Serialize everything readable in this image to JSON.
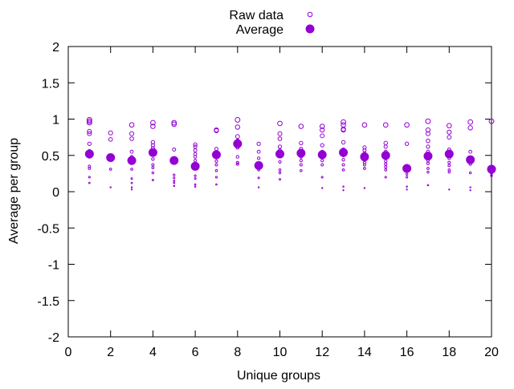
{
  "chart_data": {
    "type": "scatter",
    "xlabel": "Unique groups",
    "ylabel": "Average per group",
    "xlim": [
      0,
      20
    ],
    "ylim": [
      -2,
      2
    ],
    "xticks": [
      0,
      2,
      4,
      6,
      8,
      10,
      12,
      14,
      16,
      18,
      20
    ],
    "yticks": [
      -2,
      -1.5,
      -1,
      -0.5,
      0,
      0.5,
      1,
      1.5,
      2
    ],
    "grid": false,
    "legend_position": "top-center",
    "color": "#9400d3",
    "series": [
      {
        "name": "Raw data",
        "marker": "open-circle",
        "points": [
          [
            1,
            0.99
          ],
          [
            1,
            0.97
          ],
          [
            1,
            0.95
          ],
          [
            1,
            0.83
          ],
          [
            1,
            0.8
          ],
          [
            1,
            0.66
          ],
          [
            1,
            0.56
          ],
          [
            1,
            0.52
          ],
          [
            1,
            0.48
          ],
          [
            1,
            0.35
          ],
          [
            1,
            0.32
          ],
          [
            1,
            0.2
          ],
          [
            1,
            0.12
          ],
          [
            2,
            0.81
          ],
          [
            2,
            0.72
          ],
          [
            2,
            0.5
          ],
          [
            2,
            0.46
          ],
          [
            2,
            0.31
          ],
          [
            2,
            0.06
          ],
          [
            3,
            0.92
          ],
          [
            3,
            0.8
          ],
          [
            3,
            0.73
          ],
          [
            3,
            0.55
          ],
          [
            3,
            0.48
          ],
          [
            3,
            0.39
          ],
          [
            3,
            0.31
          ],
          [
            3,
            0.18
          ],
          [
            3,
            0.12
          ],
          [
            3,
            0.06
          ],
          [
            3,
            0.03
          ],
          [
            4,
            0.95
          ],
          [
            4,
            0.9
          ],
          [
            4,
            0.68
          ],
          [
            4,
            0.64
          ],
          [
            4,
            0.6
          ],
          [
            4,
            0.55
          ],
          [
            4,
            0.52
          ],
          [
            4,
            0.45
          ],
          [
            4,
            0.37
          ],
          [
            4,
            0.33
          ],
          [
            4,
            0.26
          ],
          [
            4,
            0.16
          ],
          [
            5,
            0.95
          ],
          [
            5,
            0.93
          ],
          [
            5,
            0.58
          ],
          [
            5,
            0.42
          ],
          [
            5,
            0.23
          ],
          [
            5,
            0.19
          ],
          [
            5,
            0.15
          ],
          [
            5,
            0.12
          ],
          [
            5,
            0.08
          ],
          [
            6,
            0.65
          ],
          [
            6,
            0.62
          ],
          [
            6,
            0.57
          ],
          [
            6,
            0.52
          ],
          [
            6,
            0.48
          ],
          [
            6,
            0.43
          ],
          [
            6,
            0.37
          ],
          [
            6,
            0.33
          ],
          [
            6,
            0.22
          ],
          [
            6,
            0.18
          ],
          [
            6,
            0.1
          ],
          [
            6,
            0.07
          ],
          [
            7,
            0.85
          ],
          [
            7,
            0.84
          ],
          [
            7,
            0.59
          ],
          [
            7,
            0.54
          ],
          [
            7,
            0.47
          ],
          [
            7,
            0.42
          ],
          [
            7,
            0.37
          ],
          [
            7,
            0.29
          ],
          [
            7,
            0.2
          ],
          [
            7,
            0.1
          ],
          [
            8,
            0.99
          ],
          [
            8,
            0.89
          ],
          [
            8,
            0.76
          ],
          [
            8,
            0.7
          ],
          [
            8,
            0.61
          ],
          [
            8,
            0.48
          ],
          [
            8,
            0.4
          ],
          [
            8,
            0.38
          ],
          [
            9,
            0.66
          ],
          [
            9,
            0.55
          ],
          [
            9,
            0.46
          ],
          [
            9,
            0.38
          ],
          [
            9,
            0.3
          ],
          [
            9,
            0.19
          ],
          [
            9,
            0.06
          ],
          [
            10,
            0.94
          ],
          [
            10,
            0.8
          ],
          [
            10,
            0.73
          ],
          [
            10,
            0.62
          ],
          [
            10,
            0.57
          ],
          [
            10,
            0.55
          ],
          [
            10,
            0.49
          ],
          [
            10,
            0.41
          ],
          [
            10,
            0.3
          ],
          [
            10,
            0.26
          ],
          [
            10,
            0.17
          ],
          [
            11,
            0.9
          ],
          [
            11,
            0.67
          ],
          [
            11,
            0.59
          ],
          [
            11,
            0.56
          ],
          [
            11,
            0.53
          ],
          [
            11,
            0.48
          ],
          [
            11,
            0.43
          ],
          [
            11,
            0.37
          ],
          [
            11,
            0.29
          ],
          [
            12,
            0.9
          ],
          [
            12,
            0.85
          ],
          [
            12,
            0.77
          ],
          [
            12,
            0.64
          ],
          [
            12,
            0.55
          ],
          [
            12,
            0.49
          ],
          [
            12,
            0.43
          ],
          [
            12,
            0.37
          ],
          [
            12,
            0.2
          ],
          [
            12,
            0.05
          ],
          [
            13,
            0.96
          ],
          [
            13,
            0.92
          ],
          [
            13,
            0.86
          ],
          [
            13,
            0.85
          ],
          [
            13,
            0.68
          ],
          [
            13,
            0.58
          ],
          [
            13,
            0.5
          ],
          [
            13,
            0.44
          ],
          [
            13,
            0.37
          ],
          [
            13,
            0.3
          ],
          [
            13,
            0.07
          ],
          [
            13,
            0.02
          ],
          [
            14,
            0.92
          ],
          [
            14,
            0.61
          ],
          [
            14,
            0.57
          ],
          [
            14,
            0.53
          ],
          [
            14,
            0.45
          ],
          [
            14,
            0.4
          ],
          [
            14,
            0.37
          ],
          [
            14,
            0.32
          ],
          [
            14,
            0.05
          ],
          [
            15,
            0.92
          ],
          [
            15,
            0.67
          ],
          [
            15,
            0.62
          ],
          [
            15,
            0.55
          ],
          [
            15,
            0.48
          ],
          [
            15,
            0.42
          ],
          [
            15,
            0.38
          ],
          [
            15,
            0.34
          ],
          [
            15,
            0.3
          ],
          [
            15,
            0.2
          ],
          [
            16,
            0.92
          ],
          [
            16,
            0.66
          ],
          [
            16,
            0.36
          ],
          [
            16,
            0.31
          ],
          [
            16,
            0.24
          ],
          [
            16,
            0.2
          ],
          [
            16,
            0.07
          ],
          [
            16,
            0.03
          ],
          [
            17,
            0.97
          ],
          [
            17,
            0.85
          ],
          [
            17,
            0.8
          ],
          [
            17,
            0.7
          ],
          [
            17,
            0.62
          ],
          [
            17,
            0.55
          ],
          [
            17,
            0.48
          ],
          [
            17,
            0.43
          ],
          [
            17,
            0.39
          ],
          [
            17,
            0.32
          ],
          [
            17,
            0.27
          ],
          [
            17,
            0.09
          ],
          [
            18,
            0.91
          ],
          [
            18,
            0.82
          ],
          [
            18,
            0.75
          ],
          [
            18,
            0.58
          ],
          [
            18,
            0.53
          ],
          [
            18,
            0.46
          ],
          [
            18,
            0.4
          ],
          [
            18,
            0.36
          ],
          [
            18,
            0.3
          ],
          [
            18,
            0.27
          ],
          [
            18,
            0.03
          ],
          [
            19,
            0.96
          ],
          [
            19,
            0.88
          ],
          [
            19,
            0.55
          ],
          [
            19,
            0.45
          ],
          [
            19,
            0.38
          ],
          [
            19,
            0.26
          ],
          [
            19,
            0.06
          ],
          [
            19,
            0.02
          ],
          [
            20,
            0.97
          ],
          [
            20,
            0.3
          ],
          [
            20,
            0.25
          ],
          [
            20,
            0.22
          ]
        ]
      },
      {
        "name": "Average",
        "marker": "filled-circle",
        "points": [
          [
            1,
            0.52
          ],
          [
            2,
            0.47
          ],
          [
            3,
            0.43
          ],
          [
            4,
            0.54
          ],
          [
            5,
            0.43
          ],
          [
            6,
            0.35
          ],
          [
            7,
            0.51
          ],
          [
            8,
            0.66
          ],
          [
            9,
            0.36
          ],
          [
            10,
            0.52
          ],
          [
            11,
            0.53
          ],
          [
            12,
            0.51
          ],
          [
            13,
            0.54
          ],
          [
            14,
            0.48
          ],
          [
            15,
            0.5
          ],
          [
            16,
            0.32
          ],
          [
            17,
            0.49
          ],
          [
            18,
            0.52
          ],
          [
            19,
            0.44
          ],
          [
            20,
            0.31
          ]
        ]
      }
    ]
  }
}
